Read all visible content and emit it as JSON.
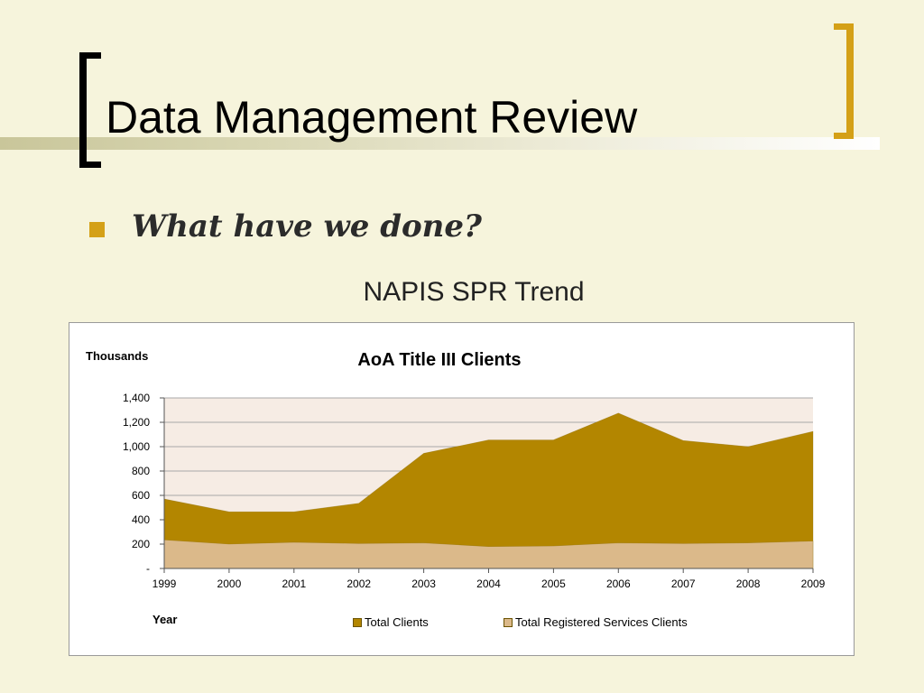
{
  "slide": {
    "title": "Data Management Review",
    "bullet": "What have we done?",
    "caption": "NAPIS SPR Trend"
  },
  "colors": {
    "background": "#f6f4dc",
    "accent": "#d4a017",
    "plot_background": "#f6ece4",
    "total_clients": "#b38600",
    "registered_clients": "#dbb98a"
  },
  "chart_data": {
    "type": "area",
    "title": "AoA Title III Clients",
    "units_label": "Thousands",
    "xlabel": "Year",
    "ylabel": "",
    "x": [
      "1999",
      "2000",
      "2001",
      "2002",
      "2003",
      "2004",
      "2005",
      "2006",
      "2007",
      "2008",
      "2009"
    ],
    "ylim": [
      0,
      1400
    ],
    "yticks": [
      {
        "value": 0,
        "label": "-"
      },
      {
        "value": 200,
        "label": "200"
      },
      {
        "value": 400,
        "label": "400"
      },
      {
        "value": 600,
        "label": "600"
      },
      {
        "value": 800,
        "label": "800"
      },
      {
        "value": 1000,
        "label": "1,000"
      },
      {
        "value": 1200,
        "label": "1,200"
      },
      {
        "value": 1400,
        "label": "1,400"
      }
    ],
    "grid": true,
    "legend_position": "bottom",
    "series": [
      {
        "name": "Total Clients",
        "values": [
          570,
          465,
          465,
          535,
          945,
          1055,
          1055,
          1275,
          1050,
          1000,
          1125
        ]
      },
      {
        "name": "Total Registered Services Clients",
        "values": [
          235,
          200,
          215,
          205,
          210,
          180,
          185,
          210,
          205,
          210,
          225
        ]
      }
    ]
  }
}
